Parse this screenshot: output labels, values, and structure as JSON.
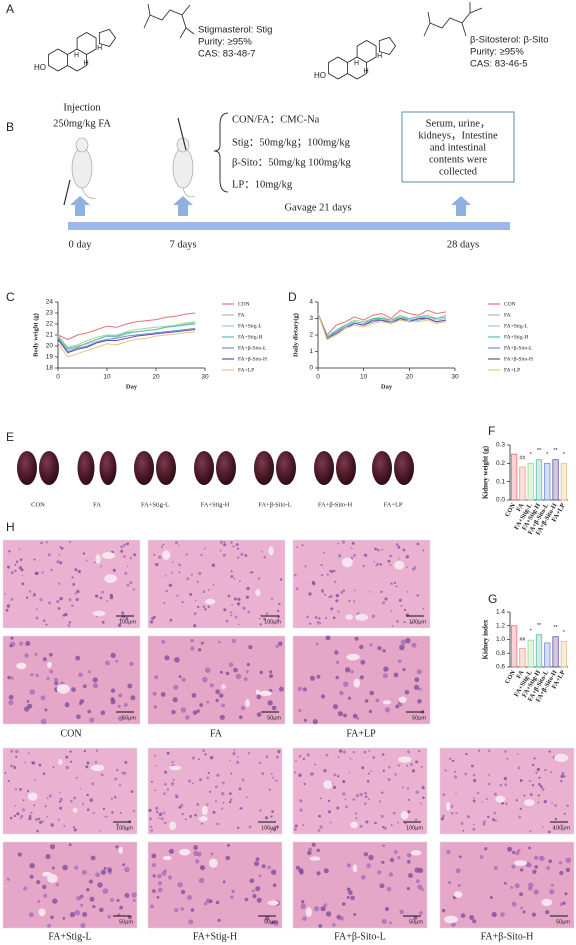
{
  "panel_labels": [
    "A",
    "B",
    "C",
    "D",
    "E",
    "F",
    "G",
    "H"
  ],
  "compounds": [
    {
      "name": "Stigmasterol: Stig",
      "purity": "Purity: ≥95%",
      "cas": "CAS: 83-48-7"
    },
    {
      "name": "β-Sitosterol: β-Sito",
      "purity": "Purity: ≥95%",
      "cas": "CAS: 83-46-5"
    }
  ],
  "atom_labels": [
    "HO",
    "H"
  ],
  "design": {
    "injection": "Injection",
    "dose": "250mg/kg FA",
    "groups": [
      "CON/FA：CMC-Na",
      "Stig：50mg/kg；100mg/kg",
      "β-Sito：50mg/kg 100mg/kg",
      "LP：10mg/kg"
    ],
    "collected": [
      "Serum, urine，",
      "kidneys，Intestine",
      "and intestinal",
      "contents were",
      "collected"
    ],
    "gavage": "Gavage 21 days",
    "days": [
      "0 day",
      "7 days",
      "28 days"
    ]
  },
  "chart_data": [
    {
      "type": "line",
      "xlabel": "Day",
      "ylabel": "Body weight (g)",
      "x": [
        0,
        2,
        4,
        6,
        8,
        10,
        12,
        14,
        16,
        18,
        20,
        22,
        24,
        26,
        28
      ],
      "xlim": [
        0,
        30
      ],
      "xticks": [
        0,
        10,
        20,
        30
      ],
      "ylim": [
        18,
        24
      ],
      "yticks": [
        18,
        19,
        20,
        21,
        22,
        23,
        24
      ],
      "series": [
        {
          "name": "CON",
          "color": "#e8707a",
          "values": [
            21.0,
            20.6,
            21.0,
            21.2,
            21.5,
            21.8,
            21.7,
            22.0,
            22.2,
            22.3,
            22.4,
            22.6,
            22.7,
            22.9,
            23.0
          ]
        },
        {
          "name": "FA",
          "color": "#b8b8b8",
          "values": [
            21.0,
            19.8,
            20.0,
            20.2,
            20.6,
            20.9,
            20.8,
            21.1,
            21.3,
            21.4,
            21.5,
            21.7,
            21.8,
            22.0,
            22.1
          ]
        },
        {
          "name": "FA+Stig-L",
          "color": "#9fd8a0",
          "values": [
            20.9,
            19.9,
            20.1,
            20.5,
            20.8,
            21.0,
            21.0,
            21.3,
            21.5,
            21.6,
            21.7,
            21.8,
            21.9,
            22.1,
            22.2
          ]
        },
        {
          "name": "FA+Stig-H",
          "color": "#5bbfb0",
          "values": [
            20.8,
            19.7,
            19.9,
            20.3,
            20.6,
            20.9,
            20.9,
            21.2,
            21.3,
            21.4,
            21.5,
            21.7,
            21.8,
            21.9,
            22.0
          ]
        },
        {
          "name": "FA+β-Sito-L",
          "color": "#7090d8",
          "values": [
            20.7,
            19.5,
            19.8,
            20.0,
            20.4,
            20.6,
            20.7,
            20.9,
            21.0,
            21.1,
            21.2,
            21.3,
            21.4,
            21.5,
            21.6
          ]
        },
        {
          "name": "FA+β-Sito-H",
          "color": "#6a4fa0",
          "values": [
            20.6,
            19.4,
            19.7,
            19.9,
            20.3,
            20.5,
            20.5,
            20.7,
            20.9,
            21.0,
            21.1,
            21.2,
            21.3,
            21.4,
            21.5
          ]
        },
        {
          "name": "FA+LP",
          "color": "#e6c58a",
          "values": [
            20.3,
            19.0,
            19.3,
            19.6,
            19.9,
            20.2,
            20.1,
            20.4,
            20.6,
            20.7,
            20.9,
            21.0,
            21.1,
            21.2,
            21.3
          ]
        }
      ]
    },
    {
      "type": "line",
      "xlabel": "Day",
      "ylabel": "Daily dietary(g)",
      "x": [
        0,
        2,
        4,
        6,
        8,
        10,
        12,
        14,
        16,
        18,
        20,
        22,
        24,
        26,
        28
      ],
      "xlim": [
        0,
        30
      ],
      "xticks": [
        0,
        10,
        20,
        30
      ],
      "ylim": [
        0,
        4
      ],
      "yticks": [
        0,
        1,
        2,
        3,
        4
      ],
      "series": [
        {
          "name": "CON",
          "color": "#e8707a",
          "values": [
            3.3,
            2.0,
            2.6,
            2.8,
            3.1,
            2.9,
            3.2,
            3.3,
            3.0,
            3.5,
            3.3,
            3.2,
            3.5,
            3.3,
            3.4
          ]
        },
        {
          "name": "FA",
          "color": "#b8b8b8",
          "values": [
            3.3,
            1.8,
            2.1,
            2.5,
            2.7,
            2.6,
            2.9,
            3.0,
            2.8,
            3.1,
            2.9,
            3.0,
            3.1,
            2.9,
            3.0
          ]
        },
        {
          "name": "FA+Stig-L",
          "color": "#9fd8a0",
          "values": [
            3.3,
            1.9,
            2.2,
            2.6,
            2.9,
            2.8,
            3.0,
            3.1,
            2.9,
            3.2,
            3.0,
            3.1,
            3.2,
            3.0,
            3.2
          ]
        },
        {
          "name": "FA+Stig-H",
          "color": "#5bbfb0",
          "values": [
            3.3,
            1.9,
            2.3,
            2.6,
            2.8,
            2.7,
            3.0,
            3.0,
            2.9,
            3.1,
            3.0,
            3.1,
            3.1,
            3.0,
            3.1
          ]
        },
        {
          "name": "FA+β-Sito-L",
          "color": "#7090d8",
          "values": [
            3.3,
            1.8,
            2.2,
            2.5,
            2.7,
            2.6,
            2.8,
            2.9,
            2.8,
            3.0,
            2.9,
            2.9,
            3.0,
            2.8,
            2.9
          ]
        },
        {
          "name": "FA+β-Sito-H",
          "color": "#6a4fa0",
          "values": [
            3.3,
            1.8,
            2.1,
            2.4,
            2.7,
            2.6,
            2.9,
            2.9,
            2.7,
            3.0,
            2.8,
            3.0,
            3.0,
            2.8,
            2.9
          ]
        },
        {
          "name": "FA+LP",
          "color": "#e6c58a",
          "values": [
            3.3,
            1.7,
            2.0,
            2.4,
            2.6,
            2.5,
            2.7,
            2.8,
            2.7,
            2.9,
            2.8,
            2.8,
            2.9,
            2.7,
            2.8
          ]
        }
      ]
    },
    {
      "type": "bar",
      "ylabel": "Kidney weight (g)",
      "categories": [
        "CON",
        "FA",
        "FA+Stig-L",
        "FA+Stig-H",
        "FA+β-Sito-L",
        "FA+β-Sito-H",
        "FA+LP"
      ],
      "values": [
        0.25,
        0.18,
        0.2,
        0.22,
        0.2,
        0.22,
        0.2
      ],
      "colors": [
        "#e8707a",
        "#f09a8a",
        "#9fd8a0",
        "#5bbfb0",
        "#7090d8",
        "#6a4fa0",
        "#e6c58a"
      ],
      "annotations": [
        null,
        "##",
        "*",
        "**",
        "*",
        "**",
        "*"
      ],
      "ylim": [
        0,
        0.3
      ],
      "yticks": [
        {
          "value": 0,
          "label": "0.0"
        },
        0.1,
        0.2,
        0.3
      ]
    },
    {
      "type": "bar",
      "ylabel": "Kidney index",
      "categories": [
        "CON",
        "FA",
        "FA+Stig-L",
        "FA+Stig-H",
        "FA+β-Sito-L",
        "FA+β-Sito-H",
        "FA+LP"
      ],
      "values": [
        1.2,
        0.87,
        0.99,
        1.07,
        0.95,
        1.04,
        0.97
      ],
      "colors": [
        "#e8707a",
        "#f09a8a",
        "#9fd8a0",
        "#5bbfb0",
        "#7090d8",
        "#6a4fa0",
        "#e6c58a"
      ],
      "annotations": [
        null,
        "##",
        "*",
        "**",
        null,
        "**",
        "*"
      ],
      "ylim": [
        0.6,
        1.4
      ],
      "yticks": [
        0.6,
        0.8,
        {
          "value": 1,
          "label": "1.0"
        },
        1.2,
        1.4
      ]
    }
  ],
  "kidney_labels": [
    "CON",
    "FA",
    "FA+Stig-L",
    "FA+Stig-H",
    "FA+β-Sito-L",
    "FA+β-Sito-H",
    "FA+LP"
  ],
  "histology": {
    "groups": [
      "CON",
      "FA",
      "FA+LP",
      "FA+Stig-L",
      "FA+Stig-H",
      "FA+β-Sito-L",
      "FA+β-Sito-H"
    ],
    "scale_bars": [
      "100μm",
      "50μm"
    ]
  }
}
